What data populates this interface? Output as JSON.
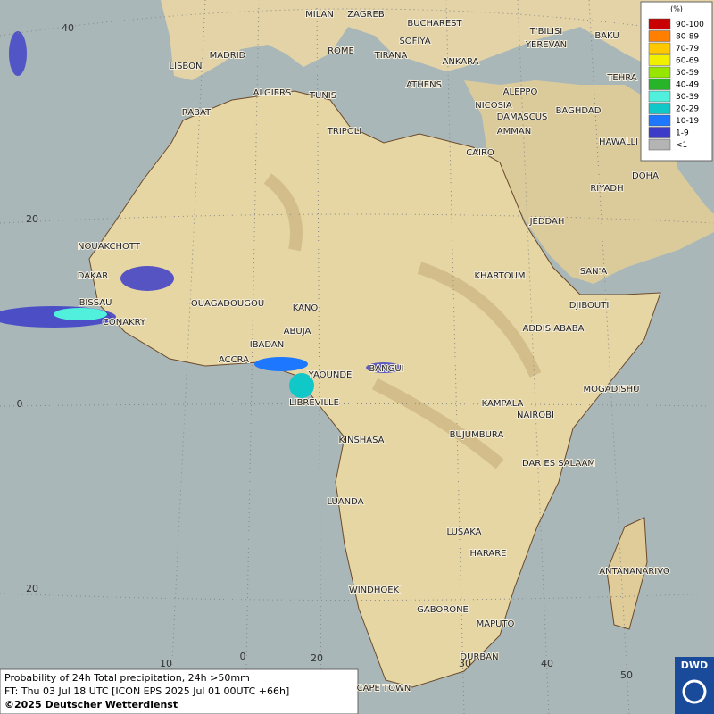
{
  "legend": {
    "title": "(%)",
    "entries": [
      {
        "label": "90-100",
        "color": "#c80000"
      },
      {
        "label": "80-89",
        "color": "#ff7f00"
      },
      {
        "label": "70-79",
        "color": "#ffc800"
      },
      {
        "label": "60-69",
        "color": "#f0f000"
      },
      {
        "label": "50-59",
        "color": "#96e600"
      },
      {
        "label": "40-49",
        "color": "#28b428"
      },
      {
        "label": "30-39",
        "color": "#50f0dc"
      },
      {
        "label": "20-29",
        "color": "#10c8c8"
      },
      {
        "label": "10-19",
        "color": "#1e78ff"
      },
      {
        "label": "1-9",
        "color": "#3c3cc8"
      },
      {
        "label": "<1",
        "color": "#b4b4b4"
      }
    ]
  },
  "cities": [
    "MILAN",
    "ZAGREB",
    "BUCHAREST",
    "T'BILISI",
    "BAKU",
    "YEREVAN",
    "MADRID",
    "ROME",
    "SOFIYA",
    "LISBON",
    "TIRANA",
    "ANKARA",
    "TEHRA",
    "ATHENS",
    "ALGIERS",
    "TUNIS",
    "ALEPPO",
    "RABAT",
    "NICOSIA",
    "BAGHDAD",
    "TRIPOLI",
    "DAMASCUS",
    "AMMAN",
    "HAWALLI",
    "CAIRO",
    "DOHA",
    "RIYADH",
    "JEDDAH",
    "NOUAKCHOTT",
    "SAN'A",
    "DAKAR",
    "KHARTOUM",
    "BISSAU",
    "OUAGADOUGOU",
    "DJIBOUTI",
    "KANO",
    "CONAKRY",
    "ABUJA",
    "ADDIS ABABA",
    "IBADAN",
    "ACCRA",
    "BANGUI",
    "YAOUNDE",
    "MOGADISHU",
    "KAMPALA",
    "LIBREVILLE",
    "NAIROBI",
    "BUJUMBURA",
    "KINSHASA",
    "DAR ES SALAAM",
    "LUANDA",
    "LUSAKA",
    "HARARE",
    "ANTANANARIVO",
    "WINDHOEK",
    "GABORONE",
    "MAPUTO",
    "DURBAN",
    "CAPE TOWN"
  ],
  "latitude_labels": [
    40,
    20,
    0,
    20
  ],
  "longitude_labels": [
    10,
    0,
    20,
    30,
    40,
    50
  ],
  "caption": {
    "line1": "Probability of 24h Total precipitation, 24h >50mm",
    "line2": "FT: Thu 03 Jul 18 UTC [ICON EPS 2025 Jul 01 00UTC +66h]",
    "copyright": "©2025 Deutscher Wetterdienst"
  },
  "logo": "DWD"
}
